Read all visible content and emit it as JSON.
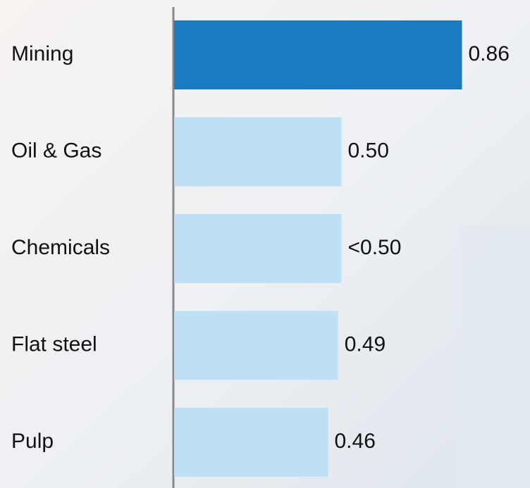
{
  "chart_data": {
    "type": "bar",
    "orientation": "horizontal",
    "categories": [
      "Mining",
      "Oil & Gas",
      "Chemicals",
      "Flat steel",
      "Pulp"
    ],
    "values": [
      0.86,
      0.5,
      0.5,
      0.49,
      0.46
    ],
    "value_labels": [
      "0.86",
      "0.50",
      "<0.50",
      "0.49",
      "0.46"
    ],
    "colors": [
      "#1a7bc0",
      "#bde0f5",
      "#bde0f5",
      "#bde0f5",
      "#bde0f5"
    ],
    "xlim": [
      0,
      1
    ]
  }
}
